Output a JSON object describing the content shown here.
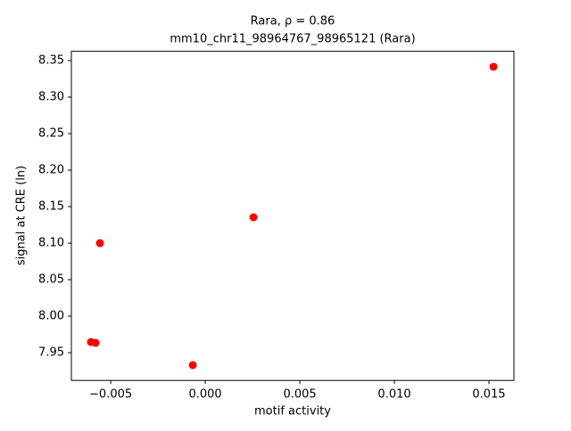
{
  "chart_data": {
    "type": "scatter",
    "title": "Rara, ρ = 0.86",
    "subtitle": "mm10_chr11_98964767_98965121 (Rara)",
    "x_label": "motif activity",
    "y_label": "signal at CRE (ln)",
    "color": "#ff0000",
    "x": [
      0.01524,
      0.00255,
      -0.00557,
      -0.00604,
      -0.0058,
      -0.00066
    ],
    "y": [
      8.3415,
      8.1354,
      8.1,
      7.9646,
      7.9634,
      7.933
    ],
    "xlim": [
      -0.00708,
      0.01632
    ],
    "ylim": [
      7.912,
      8.3627
    ],
    "xticks": [
      {
        "value": -0.005,
        "label": "−0.005"
      },
      {
        "value": 0,
        "label": "0.000"
      },
      0.005,
      {
        "value": 0.01,
        "label": "0.010"
      },
      0.015
    ],
    "yticks": [
      7.95,
      {
        "value": 8,
        "label": "8.00"
      },
      8.05,
      {
        "value": 8.1,
        "label": "8.10"
      },
      8.15,
      {
        "value": 8.2,
        "label": "8.20"
      },
      8.25,
      {
        "value": 8.3,
        "label": "8.30"
      },
      8.35
    ]
  }
}
